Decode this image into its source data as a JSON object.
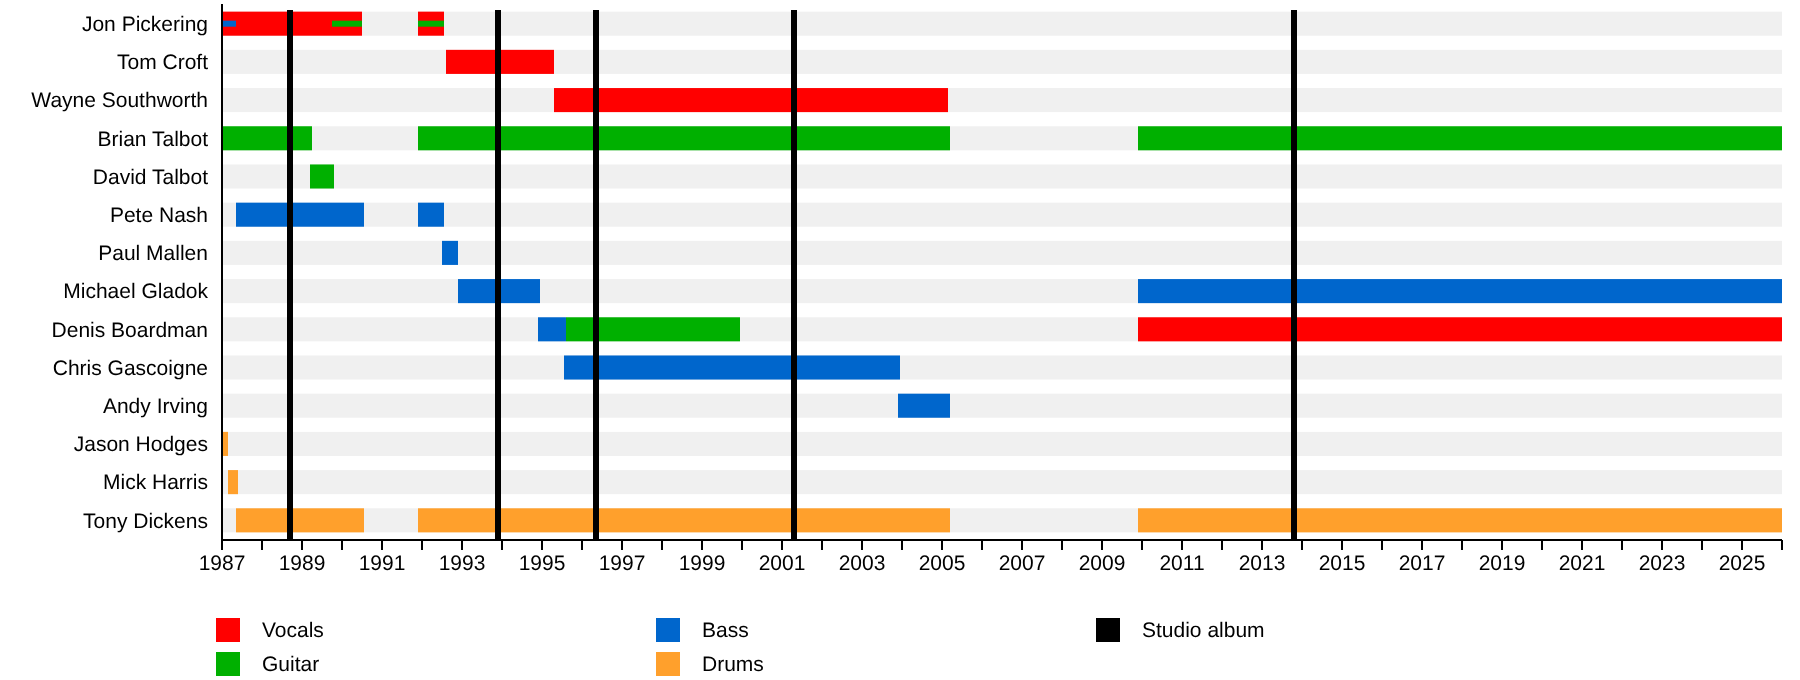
{
  "chart_data": {
    "type": "bar",
    "orientation": "horizontal",
    "legend": "bottom",
    "categories": [
      "Jon Pickering",
      "Tom Croft",
      "Wayne Southworth",
      "Brian Talbot",
      "David Talbot",
      "Pete Nash",
      "Paul Mallen",
      "Michael Gladok",
      "Denis Boardman",
      "Chris Gascoigne",
      "Andy Irving",
      "Jason Hodges",
      "Mick Harris",
      "Tony Dickens"
    ],
    "xlim": [
      1987,
      2026
    ],
    "xticks": [
      1987,
      {
        "value": 1988,
        "label": null
      },
      1989,
      {
        "value": 1990,
        "label": null
      },
      1991,
      {
        "value": 1992,
        "label": null
      },
      1993,
      {
        "value": 1994,
        "label": null
      },
      1995,
      {
        "value": 1996,
        "label": null
      },
      1997,
      {
        "value": 1998,
        "label": null
      },
      1999,
      {
        "value": 2000,
        "label": null
      },
      2001,
      {
        "value": 2002,
        "label": null
      },
      2003,
      {
        "value": 2004,
        "label": null
      },
      2005,
      {
        "value": 2006,
        "label": null
      },
      2007,
      {
        "value": 2008,
        "label": null
      },
      2009,
      {
        "value": 2010,
        "label": null
      },
      2011,
      {
        "value": 2012,
        "label": null
      },
      2013,
      {
        "value": 2014,
        "label": null
      },
      2015,
      {
        "value": 2016,
        "label": null
      },
      2017,
      {
        "value": 2018,
        "label": null
      },
      2019,
      {
        "value": 2020,
        "label": null
      },
      2021,
      {
        "value": 2022,
        "label": null
      },
      2023,
      {
        "value": 2024,
        "label": null
      },
      2025,
      {
        "value": 2026,
        "label": null
      }
    ],
    "series": [
      {
        "name": "Vocals",
        "type": "bar",
        "color": "#ff0000",
        "base": [
          1987,
          1992.6,
          1995.3,
          null,
          null,
          null,
          null,
          null,
          2009.9,
          null,
          null,
          null,
          null,
          null
        ],
        "values": [
          3.5,
          2.7,
          9.85,
          null,
          null,
          null,
          null,
          null,
          16.1,
          null,
          null,
          null,
          null,
          null
        ]
      },
      {
        "type": "bar",
        "color": "#ff0000",
        "base": [
          1991.9,
          null,
          null,
          null,
          null,
          null,
          null,
          null,
          null,
          null,
          null,
          null,
          null,
          null
        ],
        "values": [
          0.65,
          null,
          null,
          null,
          null,
          null,
          null,
          null,
          null,
          null,
          null,
          null,
          null,
          null
        ]
      },
      {
        "name": "Guitar",
        "type": "bar",
        "color": "#00b000",
        "base": [
          null,
          null,
          null,
          1987,
          1989.2,
          null,
          null,
          null,
          1995.6,
          null,
          null,
          null,
          null,
          null
        ],
        "values": [
          null,
          null,
          null,
          2.25,
          0.6,
          null,
          null,
          null,
          4.35,
          null,
          null,
          null,
          null,
          null
        ]
      },
      {
        "type": "bar",
        "color": "#00b000",
        "base": [
          null,
          null,
          null,
          1991.9,
          null,
          null,
          null,
          null,
          null,
          null,
          null,
          null,
          null,
          null
        ],
        "values": [
          null,
          null,
          null,
          13.3,
          null,
          null,
          null,
          null,
          null,
          null,
          null,
          null,
          null,
          null
        ]
      },
      {
        "type": "bar",
        "color": "#00b000",
        "base": [
          null,
          null,
          null,
          2009.9,
          null,
          null,
          null,
          null,
          null,
          null,
          null,
          null,
          null,
          null
        ],
        "values": [
          null,
          null,
          null,
          16.1,
          null,
          null,
          null,
          null,
          null,
          null,
          null,
          null,
          null,
          null
        ]
      },
      {
        "name": "Bass",
        "type": "bar",
        "color": "#0066cc",
        "base": [
          null,
          null,
          null,
          null,
          null,
          1987.35,
          1992.5,
          1992.9,
          1994.9,
          1995.55,
          2003.9,
          null,
          null,
          null
        ],
        "values": [
          null,
          null,
          null,
          null,
          null,
          3.2,
          0.4,
          2.05,
          0.7,
          8.4,
          1.3,
          null,
          null,
          null
        ]
      },
      {
        "type": "bar",
        "color": "#0066cc",
        "base": [
          null,
          null,
          null,
          null,
          null,
          1991.9,
          null,
          2009.9,
          null,
          null,
          null,
          null,
          null,
          null
        ],
        "values": [
          null,
          null,
          null,
          null,
          null,
          0.65,
          null,
          16.1,
          null,
          null,
          null,
          null,
          null,
          null
        ]
      },
      {
        "name": "Drums",
        "type": "bar",
        "color": "#ffa02c",
        "base": [
          null,
          null,
          null,
          null,
          null,
          null,
          null,
          null,
          null,
          null,
          null,
          1987,
          1987.15,
          1987.35
        ],
        "values": [
          null,
          null,
          null,
          null,
          null,
          null,
          null,
          null,
          null,
          null,
          null,
          0.15,
          0.25,
          3.2
        ]
      },
      {
        "type": "bar",
        "color": "#ffa02c",
        "base": [
          null,
          null,
          null,
          null,
          null,
          null,
          null,
          null,
          null,
          null,
          null,
          null,
          null,
          1991.9
        ],
        "values": [
          null,
          null,
          null,
          null,
          null,
          null,
          null,
          null,
          null,
          null,
          null,
          null,
          null,
          13.3
        ]
      },
      {
        "type": "bar",
        "color": "#ffa02c",
        "base": [
          null,
          null,
          null,
          null,
          null,
          null,
          null,
          null,
          null,
          null,
          null,
          null,
          null,
          2009.9
        ],
        "values": [
          null,
          null,
          null,
          null,
          null,
          null,
          null,
          null,
          null,
          null,
          null,
          null,
          null,
          16.1
        ]
      },
      {
        "type": "bar",
        "color": "#0066cc",
        "base": [
          1987,
          null,
          null,
          null,
          null,
          null,
          null,
          null,
          null,
          null,
          null,
          null,
          null,
          null
        ],
        "values": [
          0.35,
          null,
          null,
          null,
          null,
          null,
          null,
          null,
          null,
          null,
          null,
          null,
          null,
          null
        ]
      },
      {
        "type": "bar",
        "color": "#00b000",
        "base": [
          1989.75,
          null,
          null,
          null,
          null,
          null,
          null,
          null,
          null,
          null,
          null,
          null,
          null,
          null
        ],
        "values": [
          0.75,
          null,
          null,
          null,
          null,
          null,
          null,
          null,
          null,
          null,
          null,
          null,
          null,
          null
        ]
      },
      {
        "type": "bar",
        "color": "#00b000",
        "base": [
          1991.9,
          null,
          null,
          null,
          null,
          null,
          null,
          null,
          null,
          null,
          null,
          null,
          null,
          null
        ],
        "values": [
          0.65,
          null,
          null,
          null,
          null,
          null,
          null,
          null,
          null,
          null,
          null,
          null,
          null,
          null
        ]
      }
    ],
    "ref_lines": [
      {
        "axis": "x",
        "value": 1988.7,
        "label": "Studio album",
        "color": "#000000"
      },
      {
        "axis": "x",
        "value": 1993.9,
        "color": "#000000"
      },
      {
        "axis": "x",
        "value": 1996.35,
        "color": "#000000"
      },
      {
        "axis": "x",
        "value": 2001.3,
        "color": "#000000"
      },
      {
        "axis": "x",
        "value": 2013.8,
        "color": "#000000"
      }
    ]
  }
}
